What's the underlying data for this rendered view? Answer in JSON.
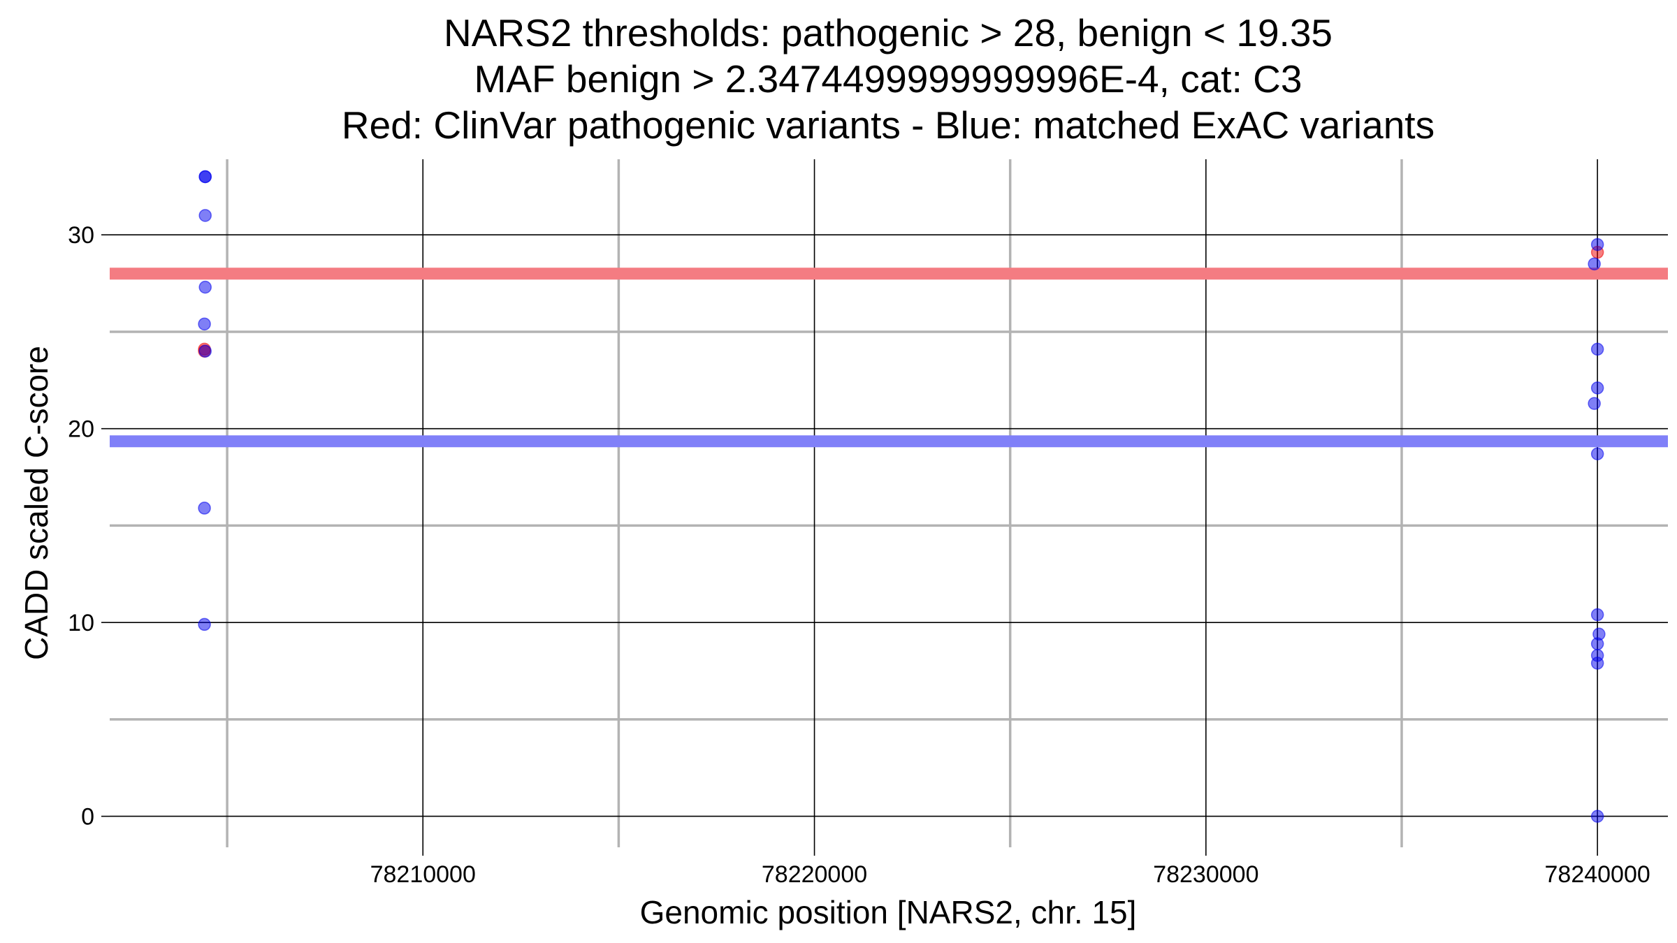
{
  "chart_data": {
    "type": "scatter",
    "title_lines": [
      "NARS2 thresholds: pathogenic > 28, benign < 19.35",
      "MAF benign > 2.3474499999999996E-4, cat: C3",
      "Red: ClinVar pathogenic variants - Blue: matched ExAC variants"
    ],
    "xlabel": "Genomic position [NARS2, chr. 15]",
    "ylabel": "CADD scaled C-score",
    "xlim": [
      78202000,
      78241800
    ],
    "ylim": [
      -1.6,
      33.9
    ],
    "x_ticks": [
      78210000,
      78220000,
      78230000,
      78240000
    ],
    "x_tick_labels": [
      "78210000",
      "78220000",
      "78230000",
      "78240000"
    ],
    "x_minor_gridlines": [
      78205000,
      78215000,
      78225000,
      78235000
    ],
    "y_ticks": [
      0,
      10,
      20,
      30
    ],
    "y_tick_labels": [
      "0",
      "10",
      "20",
      "30"
    ],
    "y_minor_gridlines": [
      5,
      15,
      25
    ],
    "grid": true,
    "thresholds": [
      {
        "label": "pathogenic",
        "value": 28,
        "color": "#f47c82"
      },
      {
        "label": "benign",
        "value": 19.35,
        "color": "#8080f8"
      }
    ],
    "series": [
      {
        "color": "#ee0000",
        "points": [
          {
            "x": 78204420,
            "y": 24.1
          },
          {
            "x": 78204420,
            "y": 24.0
          },
          {
            "x": 78240000,
            "y": 29.1
          }
        ]
      },
      {
        "color": "#0000ee",
        "points": [
          {
            "x": 78204440,
            "y": 33.0
          },
          {
            "x": 78204440,
            "y": 33.0
          },
          {
            "x": 78204440,
            "y": 31.0
          },
          {
            "x": 78204440,
            "y": 27.3
          },
          {
            "x": 78204420,
            "y": 25.4
          },
          {
            "x": 78204440,
            "y": 24.0
          },
          {
            "x": 78204420,
            "y": 15.9
          },
          {
            "x": 78204420,
            "y": 9.9
          },
          {
            "x": 78240000,
            "y": 29.5
          },
          {
            "x": 78239920,
            "y": 28.5
          },
          {
            "x": 78240000,
            "y": 24.1
          },
          {
            "x": 78240000,
            "y": 22.1
          },
          {
            "x": 78239920,
            "y": 21.3
          },
          {
            "x": 78240000,
            "y": 18.7
          },
          {
            "x": 78240000,
            "y": 10.4
          },
          {
            "x": 78240040,
            "y": 9.4
          },
          {
            "x": 78240000,
            "y": 8.9
          },
          {
            "x": 78240000,
            "y": 8.3
          },
          {
            "x": 78240000,
            "y": 7.9
          },
          {
            "x": 78240000,
            "y": 0.0
          }
        ]
      }
    ]
  }
}
